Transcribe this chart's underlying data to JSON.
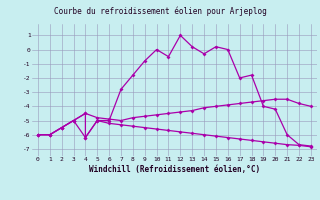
{
  "title": "Courbe du refroidissement éolien pour Arjeplog",
  "xlabel": "Windchill (Refroidissement éolien,°C)",
  "bg_color": "#c8eef0",
  "line_color": "#aa00aa",
  "grid_color": "#9999bb",
  "xlim": [
    -0.5,
    23.5
  ],
  "ylim": [
    -7.5,
    1.8
  ],
  "yticks": [
    1,
    0,
    -1,
    -2,
    -3,
    -4,
    -5,
    -6,
    -7
  ],
  "xticks": [
    0,
    1,
    2,
    3,
    4,
    5,
    6,
    7,
    8,
    9,
    10,
    11,
    12,
    13,
    14,
    15,
    16,
    17,
    18,
    19,
    20,
    21,
    22,
    23
  ],
  "s1_x": [
    0,
    1,
    2,
    3,
    4,
    4,
    5,
    6,
    7,
    8,
    9,
    10,
    11,
    12,
    13,
    14,
    15,
    16,
    17,
    18,
    19,
    20,
    21,
    22,
    23
  ],
  "s1_y": [
    -6.0,
    -6.0,
    -5.5,
    -5.0,
    -4.5,
    -6.2,
    -5.0,
    -5.0,
    -2.8,
    -1.8,
    -0.8,
    0.0,
    -0.5,
    1.0,
    0.2,
    -0.3,
    0.2,
    0.0,
    -2.0,
    -1.8,
    -4.0,
    -4.2,
    -6.0,
    -6.7,
    -6.8
  ],
  "s2_x": [
    0,
    1,
    2,
    3,
    4,
    5,
    6,
    7,
    8,
    9,
    10,
    11,
    12,
    13,
    14,
    15,
    16,
    17,
    18,
    19,
    20,
    21,
    22,
    23
  ],
  "s2_y": [
    -6.0,
    -6.0,
    -5.5,
    -5.0,
    -4.5,
    -4.8,
    -4.9,
    -5.0,
    -4.8,
    -4.7,
    -4.6,
    -4.5,
    -4.4,
    -4.3,
    -4.1,
    -4.0,
    -3.9,
    -3.8,
    -3.7,
    -3.6,
    -3.5,
    -3.5,
    -3.8,
    -4.0
  ],
  "s3_x": [
    0,
    1,
    2,
    3,
    4,
    5,
    6,
    7,
    8,
    9,
    10,
    11,
    12,
    13,
    14,
    15,
    16,
    17,
    18,
    19,
    20,
    21,
    22,
    23
  ],
  "s3_y": [
    -6.0,
    -6.0,
    -5.5,
    -5.0,
    -6.2,
    -5.0,
    -5.2,
    -5.3,
    -5.4,
    -5.5,
    -5.6,
    -5.7,
    -5.8,
    -5.9,
    -6.0,
    -6.1,
    -6.2,
    -6.3,
    -6.4,
    -6.5,
    -6.6,
    -6.7,
    -6.75,
    -6.85
  ],
  "title_fontsize": 5.5,
  "xlabel_fontsize": 5.5,
  "tick_fontsize": 4.5
}
